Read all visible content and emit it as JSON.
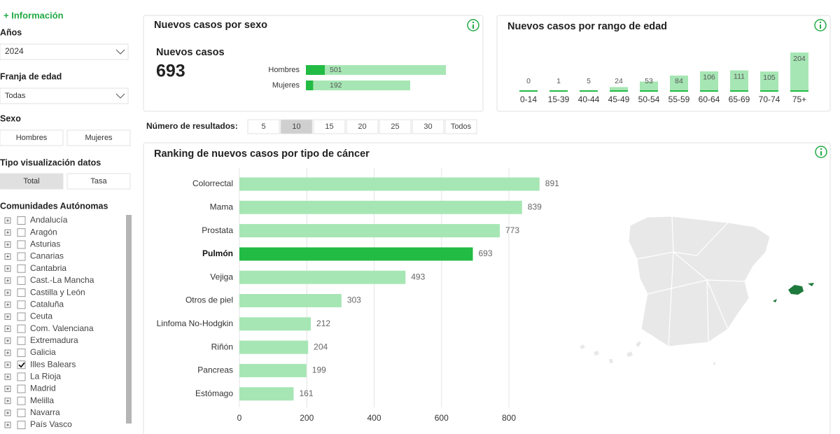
{
  "sidebar": {
    "info_link": "+ Información",
    "years": {
      "label": "Años",
      "value": "2024"
    },
    "age_range": {
      "label": "Franja de edad",
      "value": "Todas"
    },
    "sex": {
      "label": "Sexo",
      "options": [
        "Hombres",
        "Mujeres"
      ]
    },
    "view_type": {
      "label": "Tipo visualización datos",
      "options": [
        "Total",
        "Tasa"
      ],
      "selected": 0
    },
    "communities": {
      "label": "Comunidades Autónomas",
      "items": [
        "Andalucía",
        "Aragón",
        "Asturias",
        "Canarias",
        "Cantabria",
        "Cast.-La Mancha",
        "Castilla y León",
        "Cataluña",
        "Ceuta",
        "Com. Valenciana",
        "Extremadura",
        "Galicia",
        "Illes Balears",
        "La Rioja",
        "Madrid",
        "Melilla",
        "Navarra",
        "País Vasco"
      ],
      "checked": [
        12
      ]
    }
  },
  "sex_panel": {
    "title": "Nuevos casos por sexo",
    "total_label": "Nuevos casos",
    "total": 693,
    "categories": [
      "Hombres",
      "Mujeres"
    ],
    "values": [
      501,
      192
    ],
    "color": "#22bb44",
    "track_color": "#a6e6b4"
  },
  "age_panel": {
    "title": "Nuevos casos por rango de edad",
    "categories": [
      "0-14",
      "15-39",
      "40-44",
      "45-49",
      "50-54",
      "55-59",
      "60-64",
      "65-69",
      "70-74",
      "75+"
    ],
    "values": [
      0,
      1,
      5,
      24,
      53,
      84,
      106,
      111,
      105,
      204
    ],
    "color": "#a6e6b4",
    "base_color": "#22bb44"
  },
  "results": {
    "label": "Número de resultados:",
    "options": [
      5,
      10,
      15,
      20,
      25,
      30,
      "Todos"
    ],
    "selected": 1
  },
  "ranking": {
    "title": "Ranking de nuevos casos por tipo de cáncer",
    "categories": [
      "Colorrectal",
      "Mama",
      "Prostata",
      "Pulmón",
      "Vejiga",
      "Otros de piel",
      "Linfoma No-Hodgkin",
      "Riñón",
      "Pancreas",
      "Estómago"
    ],
    "values": [
      891,
      839,
      773,
      693,
      493,
      303,
      212,
      204,
      199,
      161
    ],
    "color": "#a6e6b4",
    "highlight": 3,
    "highlight_color": "#22bb44",
    "xlim": [
      0,
      800
    ],
    "xticks": [
      0,
      200,
      400,
      600,
      800
    ],
    "grid": true
  }
}
